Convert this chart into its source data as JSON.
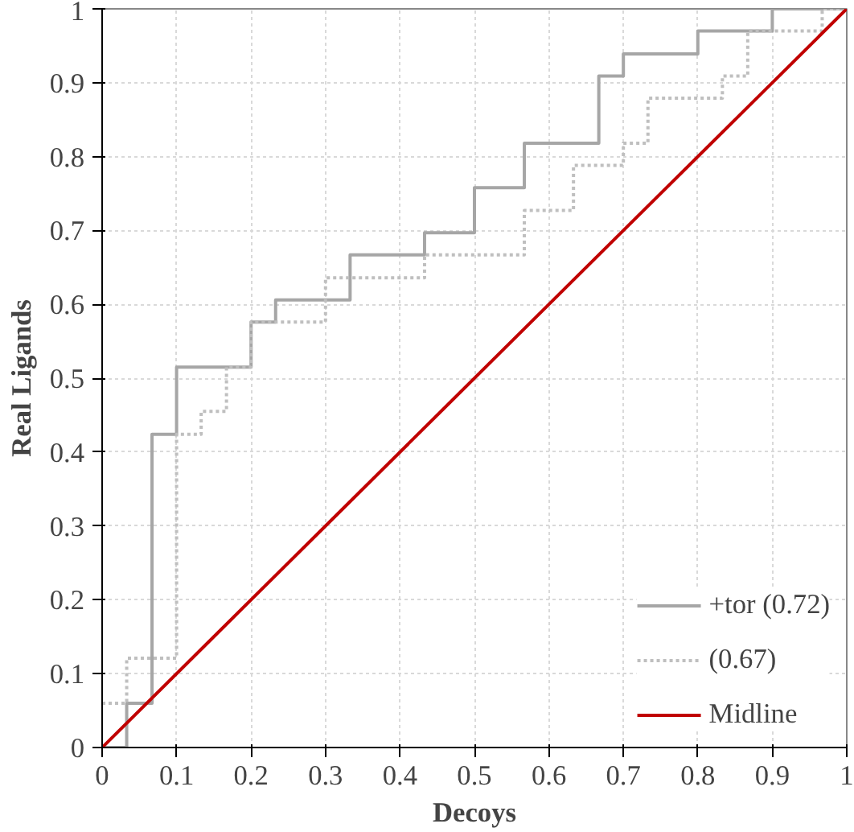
{
  "chart_data": {
    "type": "step",
    "xlabel": "Decoys",
    "ylabel": "Real Ligands",
    "xlim": [
      0,
      1
    ],
    "ylim": [
      0,
      1
    ],
    "xticks": [
      0,
      0.1,
      0.2,
      0.3,
      0.4,
      0.5,
      0.6,
      0.7,
      0.8,
      0.9,
      1
    ],
    "yticks": [
      0,
      0.1,
      0.2,
      0.3,
      0.4,
      0.5,
      0.6,
      0.7,
      0.8,
      0.9,
      1
    ],
    "grid": true,
    "legend": "bottom right",
    "series": [
      {
        "name": "+tor (0.72)",
        "color": "#a6a6a6",
        "line_style": "solid",
        "x": [
          0,
          0.033,
          0.067,
          0.1,
          0.2,
          0.233,
          0.333,
          0.433,
          0.5,
          0.567,
          0.667,
          0.7,
          0.8,
          0.9,
          1
        ],
        "values": [
          0,
          0.06,
          0.424,
          0.515,
          0.576,
          0.606,
          0.667,
          0.697,
          0.758,
          0.818,
          0.909,
          0.939,
          0.97,
          1,
          1
        ]
      },
      {
        "name": "(0.67)",
        "color": "#bfbfbf",
        "line_style": "dotted",
        "x": [
          0,
          0.033,
          0.1,
          0.133,
          0.167,
          0.2,
          0.3,
          0.433,
          0.567,
          0.633,
          0.7,
          0.733,
          0.833,
          0.867,
          0.967,
          1
        ],
        "values": [
          0.06,
          0.121,
          0.424,
          0.455,
          0.515,
          0.576,
          0.636,
          0.667,
          0.727,
          0.788,
          0.818,
          0.879,
          0.909,
          0.97,
          1,
          1
        ]
      },
      {
        "name": "Midline",
        "type": "line",
        "color": "#c00000",
        "line_style": "solid",
        "x": [
          0,
          1
        ],
        "values": [
          0,
          1
        ]
      }
    ]
  }
}
